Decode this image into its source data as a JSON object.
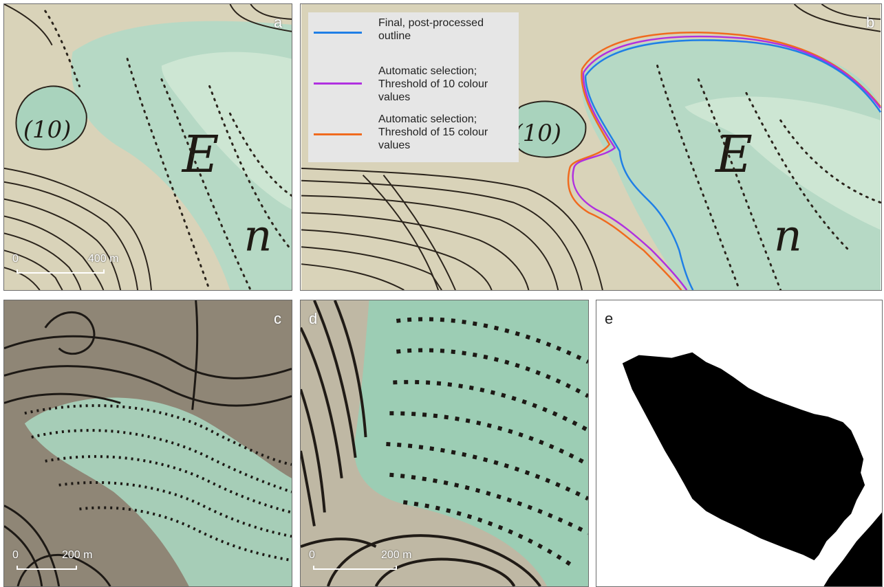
{
  "panels": {
    "a": {
      "label": "a",
      "map_text": [
        "(10)",
        "E",
        "n"
      ],
      "scale": {
        "zero": "0",
        "distance": "400 m"
      }
    },
    "b": {
      "label": "b",
      "map_text": [
        "(10)",
        "E",
        "n"
      ]
    },
    "c": {
      "label": "c",
      "scale": {
        "zero": "0",
        "distance": "200 m"
      }
    },
    "d": {
      "label": "d",
      "scale": {
        "zero": "0",
        "distance": "200 m"
      }
    },
    "e": {
      "label": "e"
    }
  },
  "legend": {
    "entries": [
      {
        "label": "Final, post-processed outline",
        "color": "#1f7fe6"
      },
      {
        "label": "Automatic selection; Threshold of 10 colour values",
        "color": "#b030e0"
      },
      {
        "label": "Automatic selection; Threshold of 15 colour values",
        "color": "#f06a1e"
      }
    ]
  },
  "colors": {
    "map_paper": "#d8d2b8",
    "glacier_tint": "#a9d3bd",
    "contour": "#2b241c",
    "photo_ground": "#8f8676",
    "mask_fill": "#000000"
  }
}
